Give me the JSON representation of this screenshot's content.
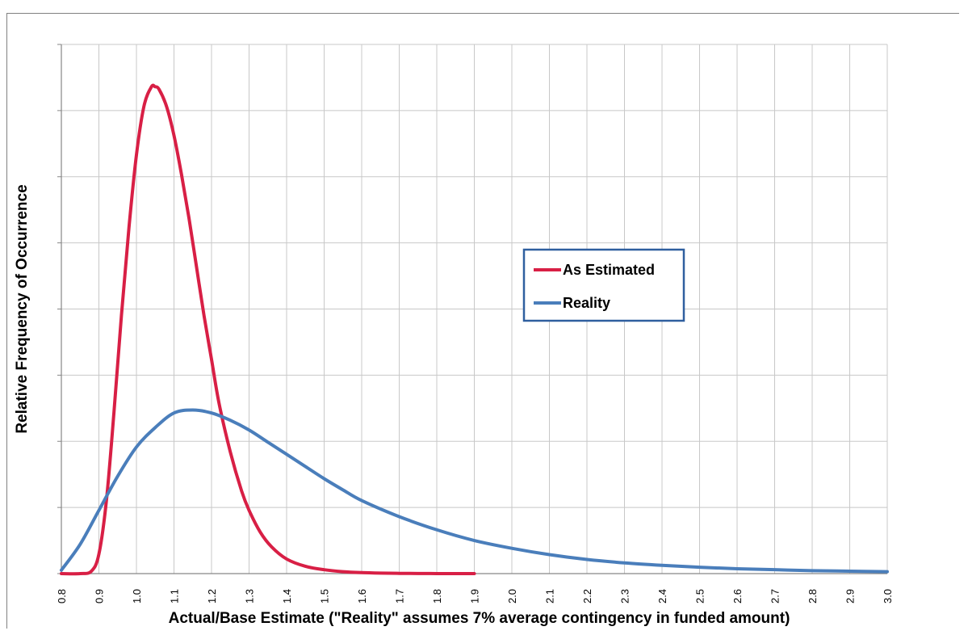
{
  "caption_fragment": "",
  "chart_data": {
    "type": "line",
    "title": "",
    "xlabel": "Actual/Base Estimate (\"Reality\" assumes 7% average contingency in funded amount)",
    "ylabel": "Relative Frequency of Occurrence",
    "xlim": [
      0.8,
      3.0
    ],
    "ylim": [
      0,
      1
    ],
    "x_ticks": [
      "0.8",
      "0.9",
      "1.0",
      "1.1",
      "1.2",
      "1.3",
      "1.4",
      "1.5",
      "1.6",
      "1.7",
      "1.8",
      "1.9",
      "2.0",
      "2.1",
      "2.2",
      "2.3",
      "2.4",
      "2.5",
      "2.6",
      "2.7",
      "2.8",
      "2.9",
      "3.0"
    ],
    "y_gridlines": 8,
    "grid": true,
    "legend": {
      "placement": "center-right",
      "entries": [
        "As Estimated",
        "Reality"
      ]
    },
    "series": [
      {
        "name": "As Estimated",
        "color": "#d81f45",
        "x": [
          0.8,
          0.85,
          0.88,
          0.9,
          0.92,
          0.94,
          0.96,
          0.98,
          1.0,
          1.02,
          1.04,
          1.05,
          1.06,
          1.08,
          1.1,
          1.12,
          1.14,
          1.16,
          1.18,
          1.2,
          1.22,
          1.25,
          1.28,
          1.3,
          1.33,
          1.36,
          1.4,
          1.45,
          1.5,
          1.55,
          1.6,
          1.65,
          1.7,
          1.75,
          1.8,
          1.85,
          1.9
        ],
        "y": [
          0.0,
          0.0,
          0.005,
          0.04,
          0.15,
          0.33,
          0.53,
          0.71,
          0.86,
          0.96,
          1.0,
          1.0,
          0.995,
          0.96,
          0.9,
          0.82,
          0.73,
          0.63,
          0.53,
          0.44,
          0.35,
          0.25,
          0.17,
          0.13,
          0.085,
          0.055,
          0.03,
          0.015,
          0.008,
          0.004,
          0.002,
          0.001,
          0.0005,
          0.0002,
          0.0001,
          0.0,
          0.0
        ]
      },
      {
        "name": "Reality",
        "color": "#4a7ebb",
        "x": [
          0.8,
          0.85,
          0.9,
          0.95,
          1.0,
          1.05,
          1.1,
          1.15,
          1.2,
          1.25,
          1.3,
          1.35,
          1.4,
          1.45,
          1.5,
          1.55,
          1.6,
          1.7,
          1.8,
          1.9,
          2.0,
          2.1,
          2.2,
          2.3,
          2.4,
          2.5,
          2.6,
          2.7,
          2.8,
          2.9,
          3.0
        ],
        "y": [
          0.007,
          0.06,
          0.13,
          0.2,
          0.26,
          0.3,
          0.33,
          0.336,
          0.33,
          0.315,
          0.295,
          0.27,
          0.245,
          0.22,
          0.195,
          0.172,
          0.15,
          0.117,
          0.09,
          0.068,
          0.052,
          0.039,
          0.029,
          0.022,
          0.017,
          0.013,
          0.01,
          0.008,
          0.006,
          0.005,
          0.004
        ]
      }
    ]
  }
}
